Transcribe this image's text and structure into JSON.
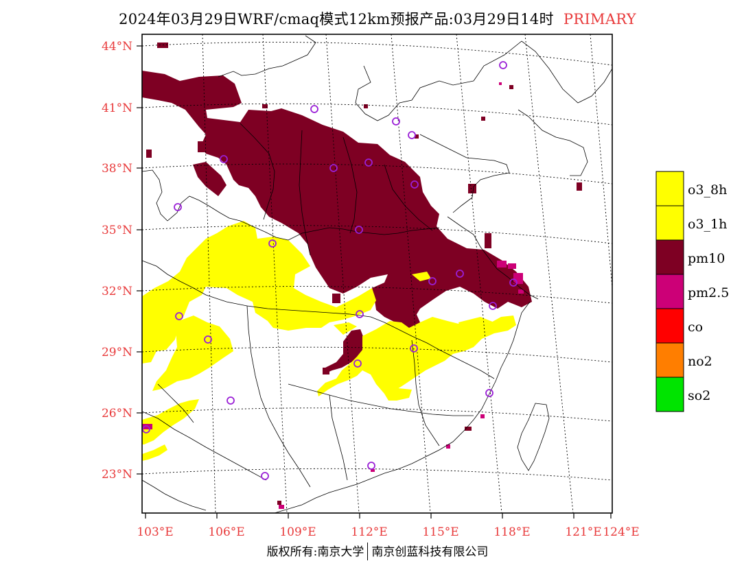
{
  "title": {
    "main": "2024年03月29日WRF/cmaq模式12km预报产品:03月29日14时",
    "tag": "PRIMARY"
  },
  "footer": {
    "left": "版权所有:南京大学",
    "right": "南京创蓝科技有限公司"
  },
  "axes": {
    "lat_labels": [
      "44°N",
      "41°N",
      "38°N",
      "35°N",
      "32°N",
      "29°N",
      "26°N",
      "23°N"
    ],
    "lon_labels": [
      "103°E",
      "106°E",
      "109°E",
      "112°E",
      "115°E",
      "118°E",
      "121°E",
      "124°E"
    ],
    "label_color": "#e8393a"
  },
  "legend": [
    {
      "label": "o3_8h",
      "color": "#ffff00"
    },
    {
      "label": "o3_1h",
      "color": "#ffff00"
    },
    {
      "label": "pm10",
      "color": "#7e0023"
    },
    {
      "label": "pm2.5",
      "color": "#cc0077"
    },
    {
      "label": "co",
      "color": "#ff0000"
    },
    {
      "label": "no2",
      "color": "#ff7e00"
    },
    {
      "label": "so2",
      "color": "#00e400"
    }
  ],
  "colors": {
    "pm10": "#7e0023",
    "o3": "#ffff00",
    "pm25": "#cc0077",
    "station": "#9a1fd6"
  }
}
